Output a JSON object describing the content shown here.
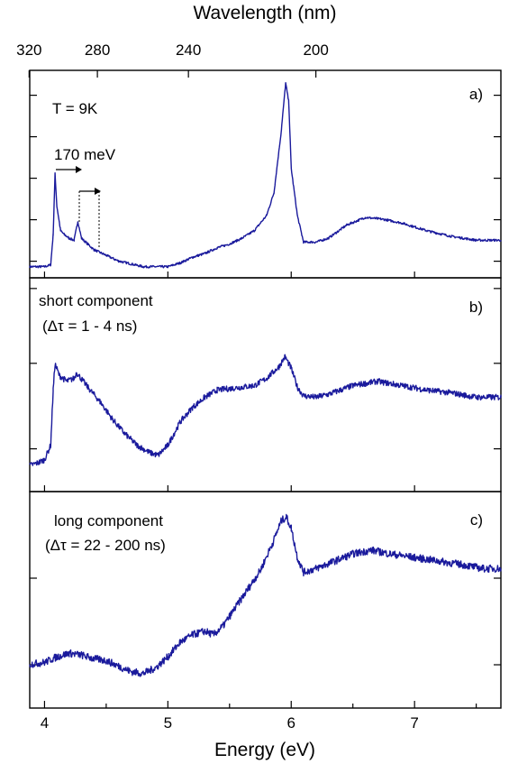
{
  "chart_data": {
    "type": "line",
    "x_axis": {
      "label": "Energy (eV)",
      "range": [
        3.88,
        7.7
      ],
      "ticks": [
        4,
        5,
        6,
        7
      ],
      "tick_labels": [
        "4",
        "5",
        "6",
        "7"
      ]
    },
    "top_axis": {
      "label": "Wavelength (nm)",
      "ticks": [
        320,
        280,
        240,
        200
      ],
      "tick_labels": [
        "320",
        "280",
        "240",
        "200"
      ]
    },
    "colors": {
      "series": "#1a1a9c",
      "axes": "#000000"
    },
    "panels": [
      {
        "id": "a",
        "tag": "a)",
        "notes": [
          "T = 9K",
          "170 meV"
        ],
        "ylim": [
          0,
          1
        ],
        "points": [
          [
            3.88,
            0.03
          ],
          [
            4.0,
            0.03
          ],
          [
            4.05,
            0.04
          ],
          [
            4.07,
            0.2
          ],
          [
            4.085,
            0.52
          ],
          [
            4.1,
            0.35
          ],
          [
            4.13,
            0.22
          ],
          [
            4.16,
            0.2
          ],
          [
            4.2,
            0.18
          ],
          [
            4.24,
            0.17
          ],
          [
            4.27,
            0.27
          ],
          [
            4.3,
            0.18
          ],
          [
            4.4,
            0.12
          ],
          [
            4.5,
            0.09
          ],
          [
            4.6,
            0.06
          ],
          [
            4.8,
            0.03
          ],
          [
            5.0,
            0.03
          ],
          [
            5.1,
            0.05
          ],
          [
            5.2,
            0.08
          ],
          [
            5.3,
            0.1
          ],
          [
            5.4,
            0.13
          ],
          [
            5.5,
            0.15
          ],
          [
            5.6,
            0.18
          ],
          [
            5.7,
            0.22
          ],
          [
            5.8,
            0.3
          ],
          [
            5.86,
            0.42
          ],
          [
            5.92,
            0.75
          ],
          [
            5.955,
            1.0
          ],
          [
            5.98,
            0.9
          ],
          [
            6.0,
            0.55
          ],
          [
            6.05,
            0.3
          ],
          [
            6.1,
            0.16
          ],
          [
            6.2,
            0.16
          ],
          [
            6.3,
            0.18
          ],
          [
            6.45,
            0.25
          ],
          [
            6.6,
            0.29
          ],
          [
            6.75,
            0.28
          ],
          [
            6.9,
            0.26
          ],
          [
            7.1,
            0.22
          ],
          [
            7.3,
            0.19
          ],
          [
            7.5,
            0.17
          ],
          [
            7.7,
            0.17
          ]
        ]
      },
      {
        "id": "b",
        "tag": "b)",
        "notes": [
          "short component",
          "(Δτ = 1 - 4 ns)"
        ],
        "ylim": [
          0,
          1
        ],
        "points": [
          [
            3.88,
            0.08
          ],
          [
            3.95,
            0.1
          ],
          [
            4.0,
            0.12
          ],
          [
            4.05,
            0.22
          ],
          [
            4.07,
            0.6
          ],
          [
            4.085,
            0.78
          ],
          [
            4.12,
            0.7
          ],
          [
            4.18,
            0.66
          ],
          [
            4.24,
            0.68
          ],
          [
            4.26,
            0.72
          ],
          [
            4.35,
            0.62
          ],
          [
            4.45,
            0.52
          ],
          [
            4.55,
            0.4
          ],
          [
            4.65,
            0.3
          ],
          [
            4.75,
            0.22
          ],
          [
            4.85,
            0.17
          ],
          [
            4.92,
            0.15
          ],
          [
            5.0,
            0.22
          ],
          [
            5.1,
            0.38
          ],
          [
            5.2,
            0.48
          ],
          [
            5.3,
            0.55
          ],
          [
            5.4,
            0.6
          ],
          [
            5.5,
            0.61
          ],
          [
            5.6,
            0.62
          ],
          [
            5.7,
            0.63
          ],
          [
            5.8,
            0.68
          ],
          [
            5.9,
            0.76
          ],
          [
            5.95,
            0.83
          ],
          [
            6.0,
            0.75
          ],
          [
            6.05,
            0.62
          ],
          [
            6.1,
            0.56
          ],
          [
            6.2,
            0.55
          ],
          [
            6.3,
            0.57
          ],
          [
            6.5,
            0.63
          ],
          [
            6.7,
            0.66
          ],
          [
            6.9,
            0.63
          ],
          [
            7.1,
            0.6
          ],
          [
            7.3,
            0.58
          ],
          [
            7.5,
            0.55
          ],
          [
            7.7,
            0.55
          ]
        ]
      },
      {
        "id": "c",
        "tag": "c)",
        "notes": [
          "long component",
          "(Δτ = 22 - 200 ns)"
        ],
        "ylim": [
          0,
          1
        ],
        "points": [
          [
            3.88,
            0.14
          ],
          [
            4.0,
            0.15
          ],
          [
            4.1,
            0.18
          ],
          [
            4.2,
            0.2
          ],
          [
            4.3,
            0.19
          ],
          [
            4.4,
            0.17
          ],
          [
            4.5,
            0.16
          ],
          [
            4.6,
            0.13
          ],
          [
            4.7,
            0.1
          ],
          [
            4.8,
            0.09
          ],
          [
            4.9,
            0.12
          ],
          [
            5.0,
            0.18
          ],
          [
            5.1,
            0.26
          ],
          [
            5.2,
            0.3
          ],
          [
            5.3,
            0.32
          ],
          [
            5.37,
            0.3
          ],
          [
            5.45,
            0.35
          ],
          [
            5.55,
            0.45
          ],
          [
            5.65,
            0.55
          ],
          [
            5.75,
            0.65
          ],
          [
            5.85,
            0.8
          ],
          [
            5.92,
            0.92
          ],
          [
            5.96,
            0.94
          ],
          [
            6.0,
            0.88
          ],
          [
            6.05,
            0.72
          ],
          [
            6.1,
            0.64
          ],
          [
            6.2,
            0.66
          ],
          [
            6.35,
            0.7
          ],
          [
            6.5,
            0.74
          ],
          [
            6.65,
            0.76
          ],
          [
            6.8,
            0.74
          ],
          [
            7.0,
            0.72
          ],
          [
            7.2,
            0.7
          ],
          [
            7.4,
            0.68
          ],
          [
            7.55,
            0.66
          ],
          [
            7.7,
            0.66
          ]
        ]
      }
    ]
  }
}
